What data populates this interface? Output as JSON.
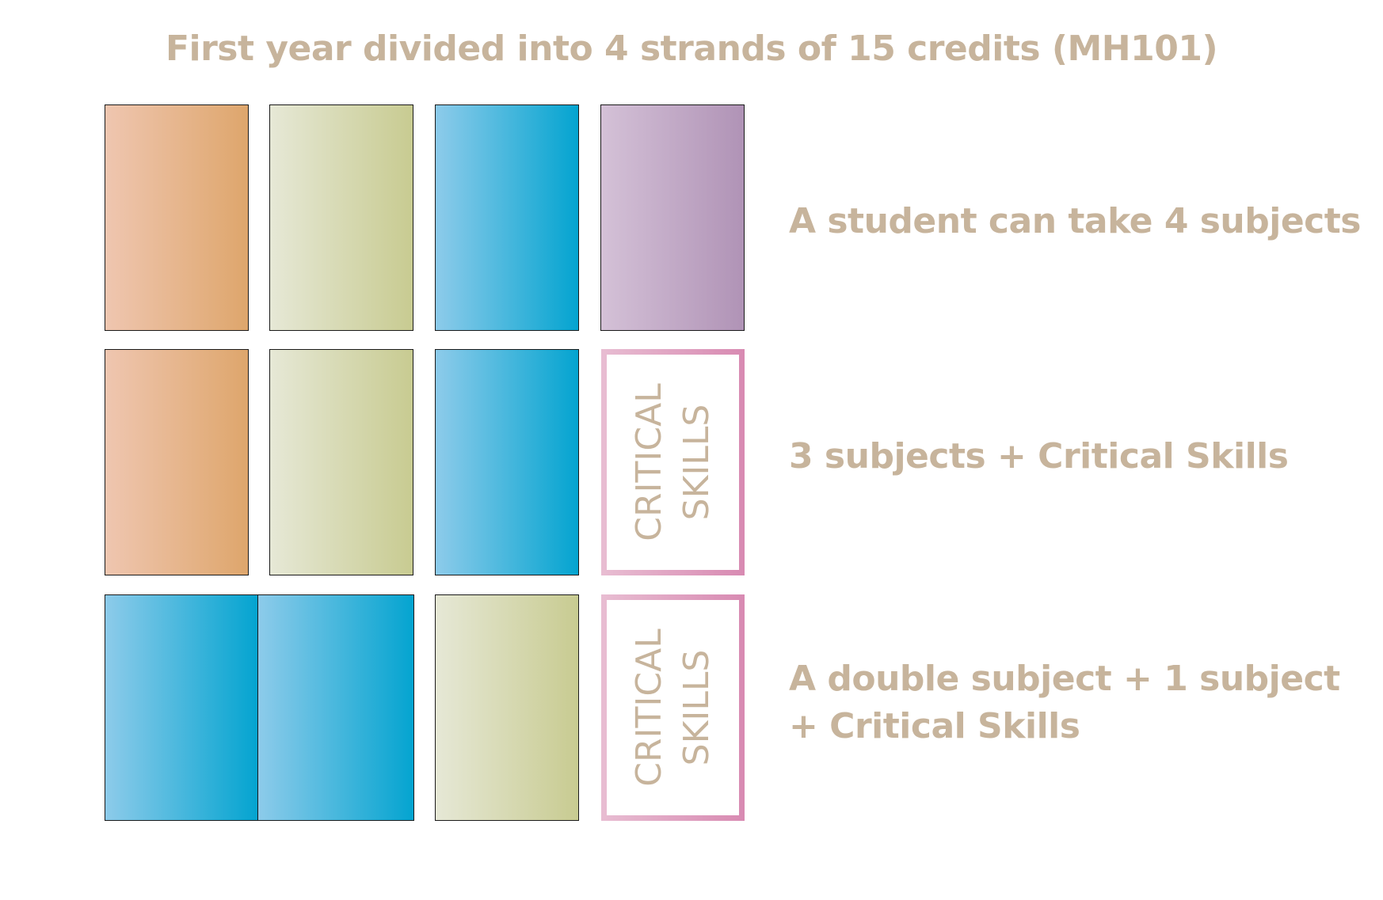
{
  "title": "First year divided into 4 strands of 15 credits (MH101)",
  "critical_skills": {
    "line1": "CRITICAL",
    "line2": "SKILLS"
  },
  "rows": [
    {
      "label_line1": "A student can take 4 subjects",
      "label_line2": ""
    },
    {
      "label_line1": "3 subjects + Critical Skills",
      "label_line2": ""
    },
    {
      "label_line1": "A double subject + 1 subject",
      "label_line2": "+ Critical Skills"
    }
  ],
  "colors": {
    "text": "#c7b49c",
    "orange": [
      "#efc6b0",
      "#dea66c"
    ],
    "green": [
      "#e6e8d6",
      "#c8cb91"
    ],
    "blue": [
      "#8dcbea",
      "#04a4d0"
    ],
    "purple": [
      "#d4c1d7",
      "#b093b6"
    ],
    "critical_border": [
      "#e8bdd2",
      "#d88ab2"
    ]
  }
}
